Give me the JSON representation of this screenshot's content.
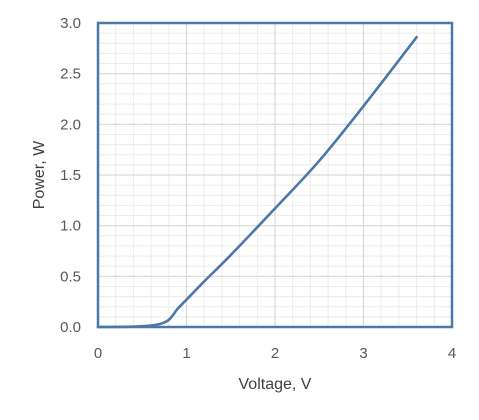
{
  "chart_data": {
    "type": "line",
    "title": "",
    "xlabel": "Voltage, V",
    "ylabel": "Power, W",
    "xlim": [
      0,
      4
    ],
    "ylim": [
      0,
      3
    ],
    "x_ticks": [
      0,
      1,
      2,
      3,
      4
    ],
    "x_tick_labels": [
      "0",
      "1",
      "2",
      "3",
      "4"
    ],
    "y_ticks": [
      0,
      0.5,
      1,
      1.5,
      2,
      2.5,
      3
    ],
    "y_tick_labels": [
      "0.0",
      "0.5",
      "1.0",
      "1.5",
      "2.0",
      "2.5",
      "3.0"
    ],
    "grid": true,
    "minor_grid": true,
    "legend": "none",
    "series": [
      {
        "color": "#4a78a8",
        "x": [
          0,
          0.3,
          0.5,
          0.6,
          0.7,
          0.75,
          0.8,
          0.85,
          0.9,
          1.0,
          1.2,
          1.5,
          2.0,
          2.5,
          3.0,
          3.6
        ],
        "y": [
          0,
          0.002,
          0.008,
          0.015,
          0.03,
          0.045,
          0.07,
          0.12,
          0.18,
          0.27,
          0.45,
          0.71,
          1.17,
          1.64,
          2.18,
          2.86
        ]
      }
    ]
  },
  "colors": {
    "axis": "#4a78a8",
    "major_grid": "#d9d9d9",
    "minor_grid": "#ececec",
    "text": "#595959"
  }
}
